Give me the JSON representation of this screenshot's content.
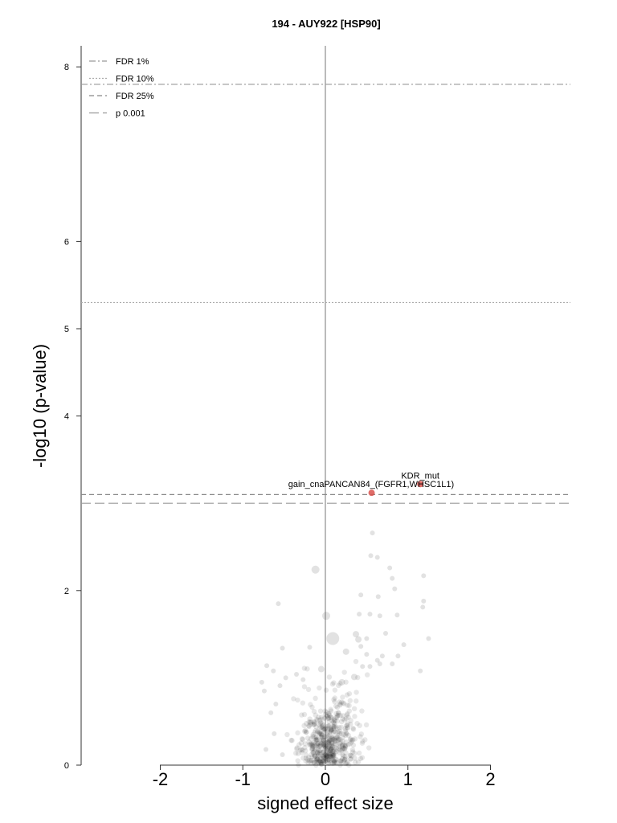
{
  "chart_data": {
    "type": "scatter",
    "title": "194 - AUY922 [HSP90]",
    "xlabel": "signed effect size",
    "ylabel": "-log10 (p-value)",
    "xlim": [
      -2,
      2
    ],
    "ylim": [
      0,
      8
    ],
    "x_ticks": [
      "-2",
      "-1",
      "0",
      "1",
      "2"
    ],
    "y_ticks": [
      "0",
      "2",
      "4",
      "5",
      "6",
      "8"
    ],
    "grid": false,
    "legend_position": "top-left",
    "thresholds": [
      {
        "name": "FDR 1%",
        "y": 7.8,
        "style": "dashdot"
      },
      {
        "name": "FDR 10%",
        "y": 5.3,
        "style": "dotted"
      },
      {
        "name": "FDR 25%",
        "y": 3.1,
        "style": "dashed"
      },
      {
        "name": "p 0.001",
        "y": 3.0,
        "style": "longdash"
      }
    ],
    "highlighted": [
      {
        "label": "KDR_mut",
        "x": 1.15,
        "y": 3.22,
        "color": "#d9534f"
      },
      {
        "label": "gain_cnaPANCAN84_(FGFR1,WHSC1L1)",
        "x": 0.56,
        "y": 3.12,
        "color": "#d9534f"
      }
    ],
    "background_points": [
      {
        "x": -0.12,
        "y": 2.24,
        "s": 5
      },
      {
        "x": 0.01,
        "y": 1.71,
        "s": 5
      },
      {
        "x": 0.09,
        "y": 1.45,
        "s": 8
      },
      {
        "x": 0.55,
        "y": 2.4,
        "s": 3
      },
      {
        "x": 0.57,
        "y": 2.66,
        "s": 3
      },
      {
        "x": 0.63,
        "y": 2.38,
        "s": 3
      },
      {
        "x": 0.78,
        "y": 2.26,
        "s": 3
      },
      {
        "x": 0.81,
        "y": 2.14,
        "s": 3
      },
      {
        "x": 0.84,
        "y": 2.02,
        "s": 3
      },
      {
        "x": 1.19,
        "y": 2.17,
        "s": 3
      },
      {
        "x": 1.19,
        "y": 1.88,
        "s": 3
      },
      {
        "x": 1.18,
        "y": 1.81,
        "s": 3
      },
      {
        "x": 0.87,
        "y": 1.72,
        "s": 3
      },
      {
        "x": 1.25,
        "y": 1.45,
        "s": 3
      },
      {
        "x": 1.15,
        "y": 1.08,
        "s": 3
      },
      {
        "x": -0.57,
        "y": 1.85,
        "s": 3
      },
      {
        "x": -0.52,
        "y": 1.34,
        "s": 3
      },
      {
        "x": -0.19,
        "y": 1.35,
        "s": 3
      },
      {
        "x": 0.37,
        "y": 1.5,
        "s": 4
      },
      {
        "x": 0.4,
        "y": 1.44,
        "s": 4
      },
      {
        "x": 0.25,
        "y": 1.3,
        "s": 4
      },
      {
        "x": 0.43,
        "y": 1.36,
        "s": 3
      },
      {
        "x": 0.5,
        "y": 1.45,
        "s": 3
      },
      {
        "x": 0.5,
        "y": 1.27,
        "s": 3
      },
      {
        "x": 0.45,
        "y": 1.13,
        "s": 3
      },
      {
        "x": 0.54,
        "y": 1.13,
        "s": 3
      },
      {
        "x": 0.63,
        "y": 1.2,
        "s": 3
      },
      {
        "x": 0.69,
        "y": 1.25,
        "s": 3
      },
      {
        "x": 0.66,
        "y": 1.16,
        "s": 3
      },
      {
        "x": 0.73,
        "y": 1.51,
        "s": 3
      },
      {
        "x": 0.81,
        "y": 1.16,
        "s": 3
      },
      {
        "x": 0.88,
        "y": 1.25,
        "s": 3
      },
      {
        "x": 0.95,
        "y": 1.38,
        "s": 3
      },
      {
        "x": 0.41,
        "y": 1.73,
        "s": 3
      },
      {
        "x": 0.54,
        "y": 1.73,
        "s": 3
      },
      {
        "x": 0.66,
        "y": 1.71,
        "s": 3
      },
      {
        "x": 0.64,
        "y": 1.93,
        "s": 3
      },
      {
        "x": 0.43,
        "y": 1.95,
        "s": 3
      },
      {
        "x": 0.35,
        "y": 1.01,
        "s": 4
      },
      {
        "x": 0.2,
        "y": 0.95,
        "s": 4
      },
      {
        "x": -0.05,
        "y": 1.1,
        "s": 4
      },
      {
        "x": -0.71,
        "y": 1.14,
        "s": 3
      },
      {
        "x": -0.77,
        "y": 0.95,
        "s": 3
      },
      {
        "x": -0.74,
        "y": 0.85,
        "s": 3
      },
      {
        "x": -0.63,
        "y": 1.08,
        "s": 3
      },
      {
        "x": -0.55,
        "y": 0.91,
        "s": 3
      },
      {
        "x": -0.48,
        "y": 1.0,
        "s": 3
      },
      {
        "x": -0.35,
        "y": 1.04,
        "s": 3
      },
      {
        "x": -0.27,
        "y": 0.98,
        "s": 3
      },
      {
        "x": -0.6,
        "y": 0.7,
        "s": 3
      },
      {
        "x": -0.66,
        "y": 0.6,
        "s": 3
      },
      {
        "x": -0.62,
        "y": 0.36,
        "s": 3
      },
      {
        "x": -0.72,
        "y": 0.18,
        "s": 3
      },
      {
        "x": -0.52,
        "y": 0.12,
        "s": 3
      }
    ]
  }
}
